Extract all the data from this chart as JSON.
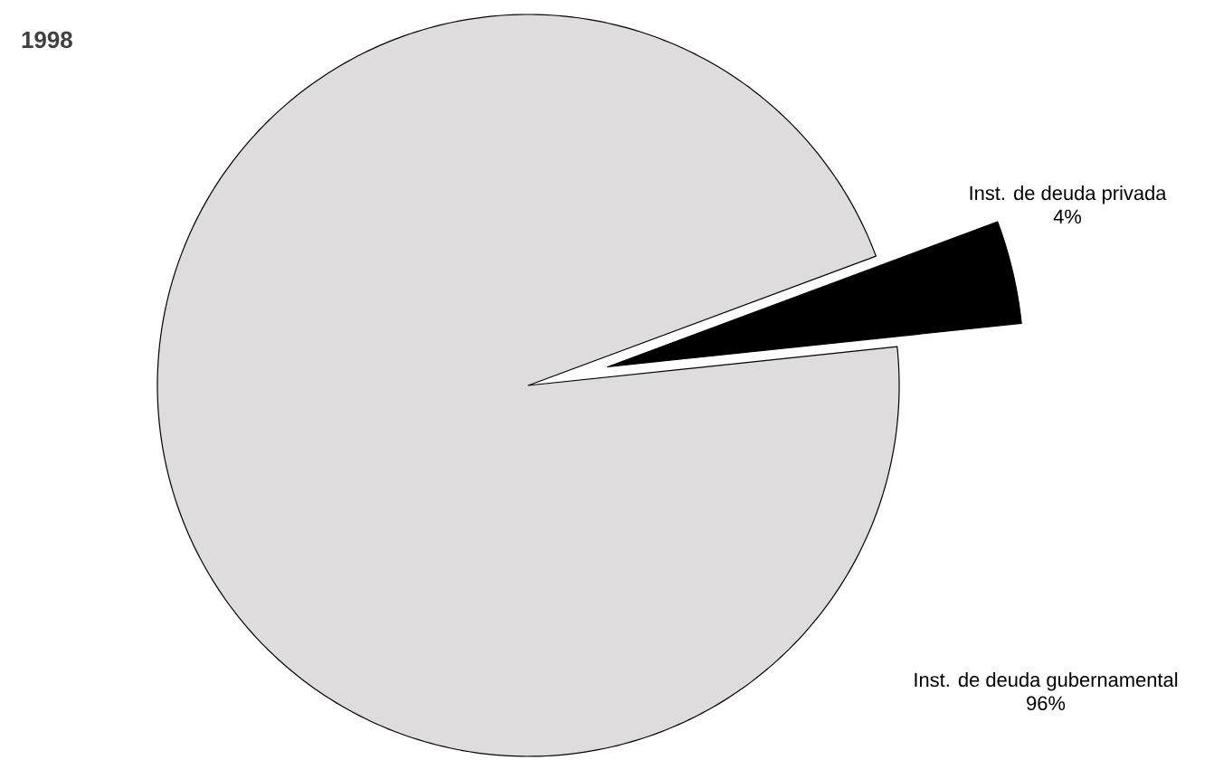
{
  "chart_data": {
    "type": "pie",
    "title": "1998",
    "categories": [
      "Inst. de deuda privada",
      "Inst. de deuda gubernamental"
    ],
    "values": [
      4,
      96
    ],
    "colors": [
      "#000000",
      "#dedcdc"
    ],
    "value_labels": [
      "4%",
      "96%"
    ]
  }
}
